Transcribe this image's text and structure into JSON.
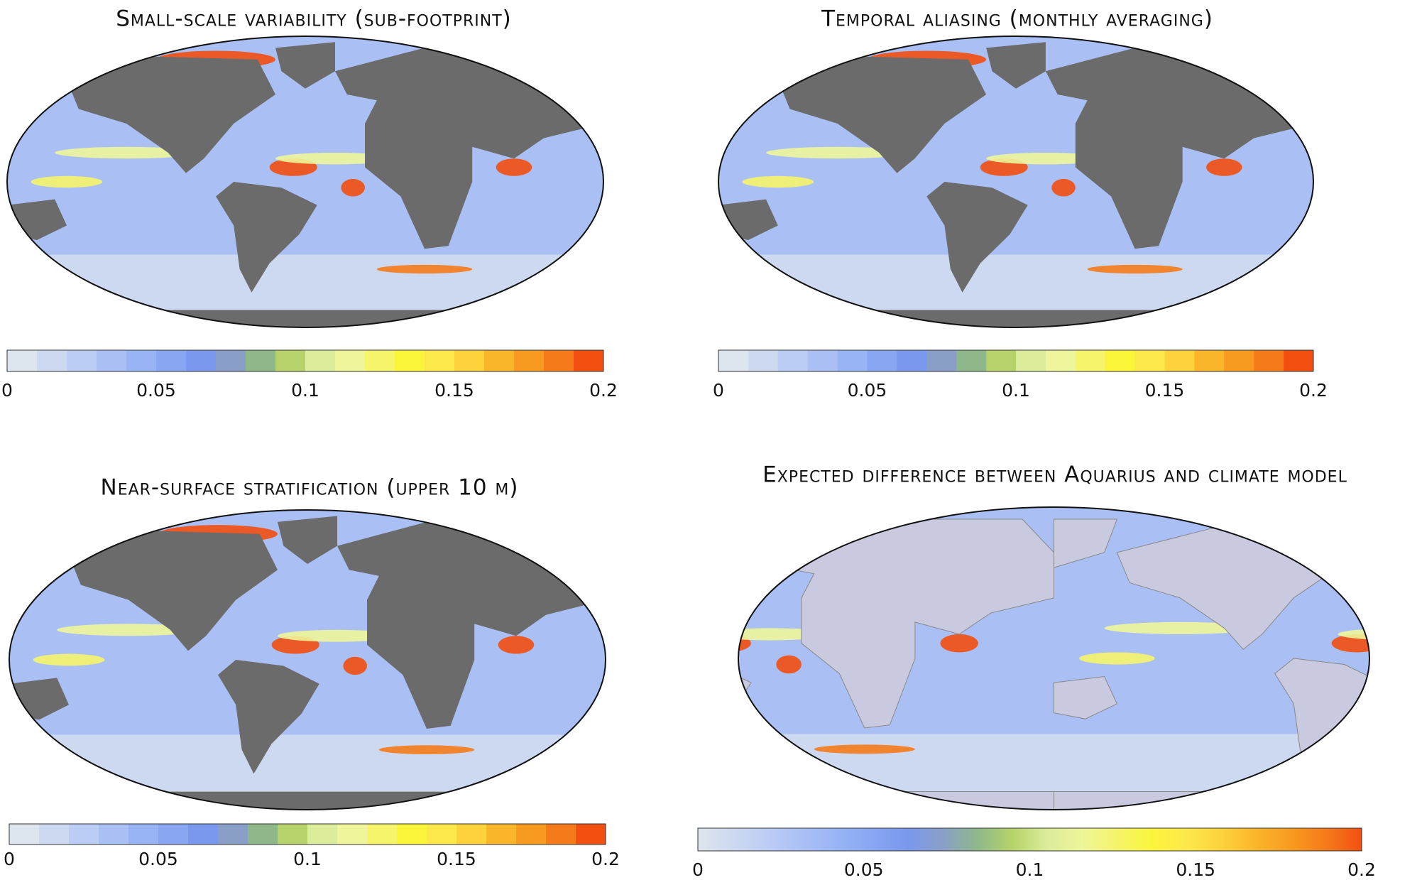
{
  "panels": [
    {
      "title": "Small-scale variability (sub-footprint)",
      "land_color": "#6b6b6b",
      "colorbar": {
        "style": "discrete",
        "lim": [
          0,
          0.2
        ],
        "ticks": [
          0,
          0.05,
          0.1,
          0.15,
          0.2
        ]
      }
    },
    {
      "title": "Temporal aliasing (monthly averaging)",
      "land_color": "#6b6b6b",
      "colorbar": {
        "style": "discrete",
        "lim": [
          0,
          0.2
        ],
        "ticks": [
          0,
          0.05,
          0.1,
          0.15,
          0.2
        ]
      }
    },
    {
      "title": "Near-surface stratification (upper 10 m)",
      "land_color": "#6b6b6b",
      "colorbar": {
        "style": "discrete",
        "lim": [
          0,
          0.2
        ],
        "ticks": [
          0,
          0.05,
          0.1,
          0.15,
          0.2
        ]
      }
    },
    {
      "title": "Expected difference between Aquarius and climate model",
      "land_color": "#c9c9e0",
      "colorbar": {
        "style": "continuous",
        "lim": [
          0,
          0.2
        ],
        "ticks": [
          0,
          0.05,
          0.1,
          0.15,
          0.2
        ]
      }
    }
  ],
  "colormap": [
    "#dde6ee",
    "#cdd9f0",
    "#bccdf5",
    "#aac0f5",
    "#98b4f5",
    "#88a6f2",
    "#7a98ee",
    "#8a9fc8",
    "#8fb88a",
    "#b5d36a",
    "#dbec9a",
    "#eef59a",
    "#f5f46a",
    "#fbf53a",
    "#fde84a",
    "#fdd23a",
    "#fbb52a",
    "#f89a20",
    "#f57a1a",
    "#f24f10"
  ]
}
